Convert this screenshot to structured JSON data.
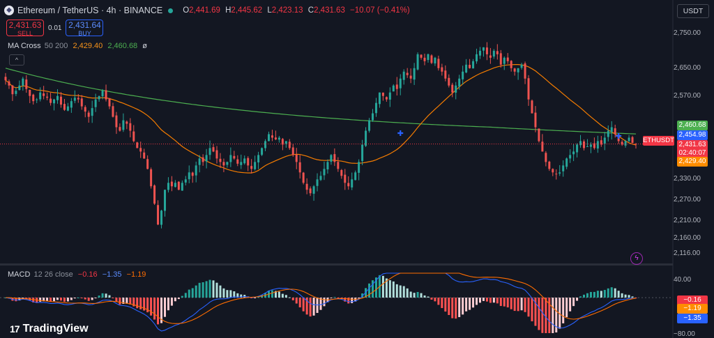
{
  "header": {
    "symbol": "Ethereum / TetherUS · 4h · BINANCE",
    "icon": "ethereum-logo-icon",
    "o_label": "O",
    "o_value": "2,441.69",
    "h_label": "H",
    "h_value": "2,445.62",
    "l_label": "L",
    "l_value": "2,423.13",
    "c_label": "C",
    "c_value": "2,431.63",
    "change": "−10.07 (−0.41%)"
  },
  "trade": {
    "sell_price": "2,431.63",
    "sell_label": "SELL",
    "spread": "0.01",
    "buy_price": "2,431.64",
    "buy_label": "BUY"
  },
  "ma_legend": {
    "name": "MA Cross",
    "params": "50 200",
    "v1": "2,429.40",
    "v2": "2,460.68",
    "suffix": "ø"
  },
  "macd_legend": {
    "name": "MACD",
    "params": "12 26 close",
    "hist": "−0.16",
    "macd": "−1.35",
    "signal": "−1.19"
  },
  "currency": "USDT",
  "price_axis": {
    "ticks": [
      "2,750.00",
      "2,650.00",
      "2,570.00",
      "2,330.00",
      "2,270.00",
      "2,210.00",
      "2,160.00",
      "2,116.00"
    ],
    "badges": [
      {
        "text": "2,460.68",
        "color": "#4caf50"
      },
      {
        "text": "2,454.98",
        "color": "#2962ff"
      },
      {
        "text": "2,431.63",
        "color": "#f23645"
      },
      {
        "text": "02:40:07",
        "color": "#f23645"
      },
      {
        "text": "2,429.40",
        "color": "#ff8c00"
      }
    ],
    "symbol_tag": "ETHUSDT"
  },
  "macd_axis": {
    "ticks": [
      "40.00"
    ],
    "badges": [
      {
        "text": "−0.16",
        "color": "#f23645"
      },
      {
        "text": "−1.19",
        "color": "#ff8c00"
      },
      {
        "text": "−1.35",
        "color": "#2962ff"
      }
    ],
    "bottom_tick": "−80.00"
  },
  "brand": "TradingView",
  "colors": {
    "up": "#26a69a",
    "down": "#ef5350",
    "ma50": "#f57c00",
    "ma200": "#4caf50",
    "macd": "#2962ff",
    "signal": "#ff6d00"
  },
  "chart_data": {
    "type": "candlestick",
    "ylim": [
      2100,
      2790
    ],
    "closes": [
      2615,
      2600,
      2575,
      2585,
      2600,
      2620,
      2590,
      2570,
      2555,
      2560,
      2580,
      2570,
      2565,
      2550,
      2560,
      2570,
      2545,
      2530,
      2540,
      2555,
      2565,
      2560,
      2540,
      2525,
      2510,
      2535,
      2560,
      2570,
      2585,
      2560,
      2540,
      2510,
      2480,
      2470,
      2500,
      2490,
      2470,
      2440,
      2420,
      2410,
      2390,
      2360,
      2310,
      2260,
      2200,
      2240,
      2300,
      2320,
      2310,
      2320,
      2300,
      2320,
      2330,
      2350,
      2340,
      2370,
      2390,
      2380,
      2400,
      2420,
      2410,
      2390,
      2380,
      2370,
      2380,
      2400,
      2390,
      2375,
      2380,
      2390,
      2370,
      2360,
      2380,
      2400,
      2420,
      2440,
      2460,
      2450,
      2445,
      2450,
      2430,
      2440,
      2420,
      2400,
      2380,
      2350,
      2320,
      2300,
      2290,
      2310,
      2330,
      2340,
      2360,
      2380,
      2400,
      2380,
      2360,
      2340,
      2320,
      2310,
      2330,
      2350,
      2380,
      2430,
      2470,
      2500,
      2520,
      2550,
      2580,
      2570,
      2560,
      2580,
      2600,
      2590,
      2620,
      2640,
      2630,
      2620,
      2650,
      2690,
      2680,
      2670,
      2690,
      2665,
      2680,
      2650,
      2640,
      2620,
      2600,
      2580,
      2600,
      2620,
      2640,
      2660,
      2650,
      2670,
      2690,
      2700,
      2710,
      2690,
      2680,
      2700,
      2690,
      2660,
      2680,
      2670,
      2650,
      2640,
      2650,
      2660,
      2620,
      2560,
      2520,
      2480,
      2440,
      2410,
      2380,
      2360,
      2350,
      2345,
      2350,
      2370,
      2390,
      2400,
      2410,
      2430,
      2440,
      2420,
      2425,
      2430,
      2420,
      2440,
      2430,
      2450,
      2470,
      2480,
      2460,
      2440,
      2430,
      2440,
      2450,
      2435,
      2431.63
    ],
    "ma50_current": 2429.4,
    "ma200_current": 2460.68,
    "cross_markers": [
      2463,
      2454.98
    ],
    "last_price": 2431.63,
    "macd_ylim": [
      -80,
      55
    ],
    "macd_current": {
      "hist": -0.16,
      "macd": -1.35,
      "signal": -1.19
    }
  }
}
